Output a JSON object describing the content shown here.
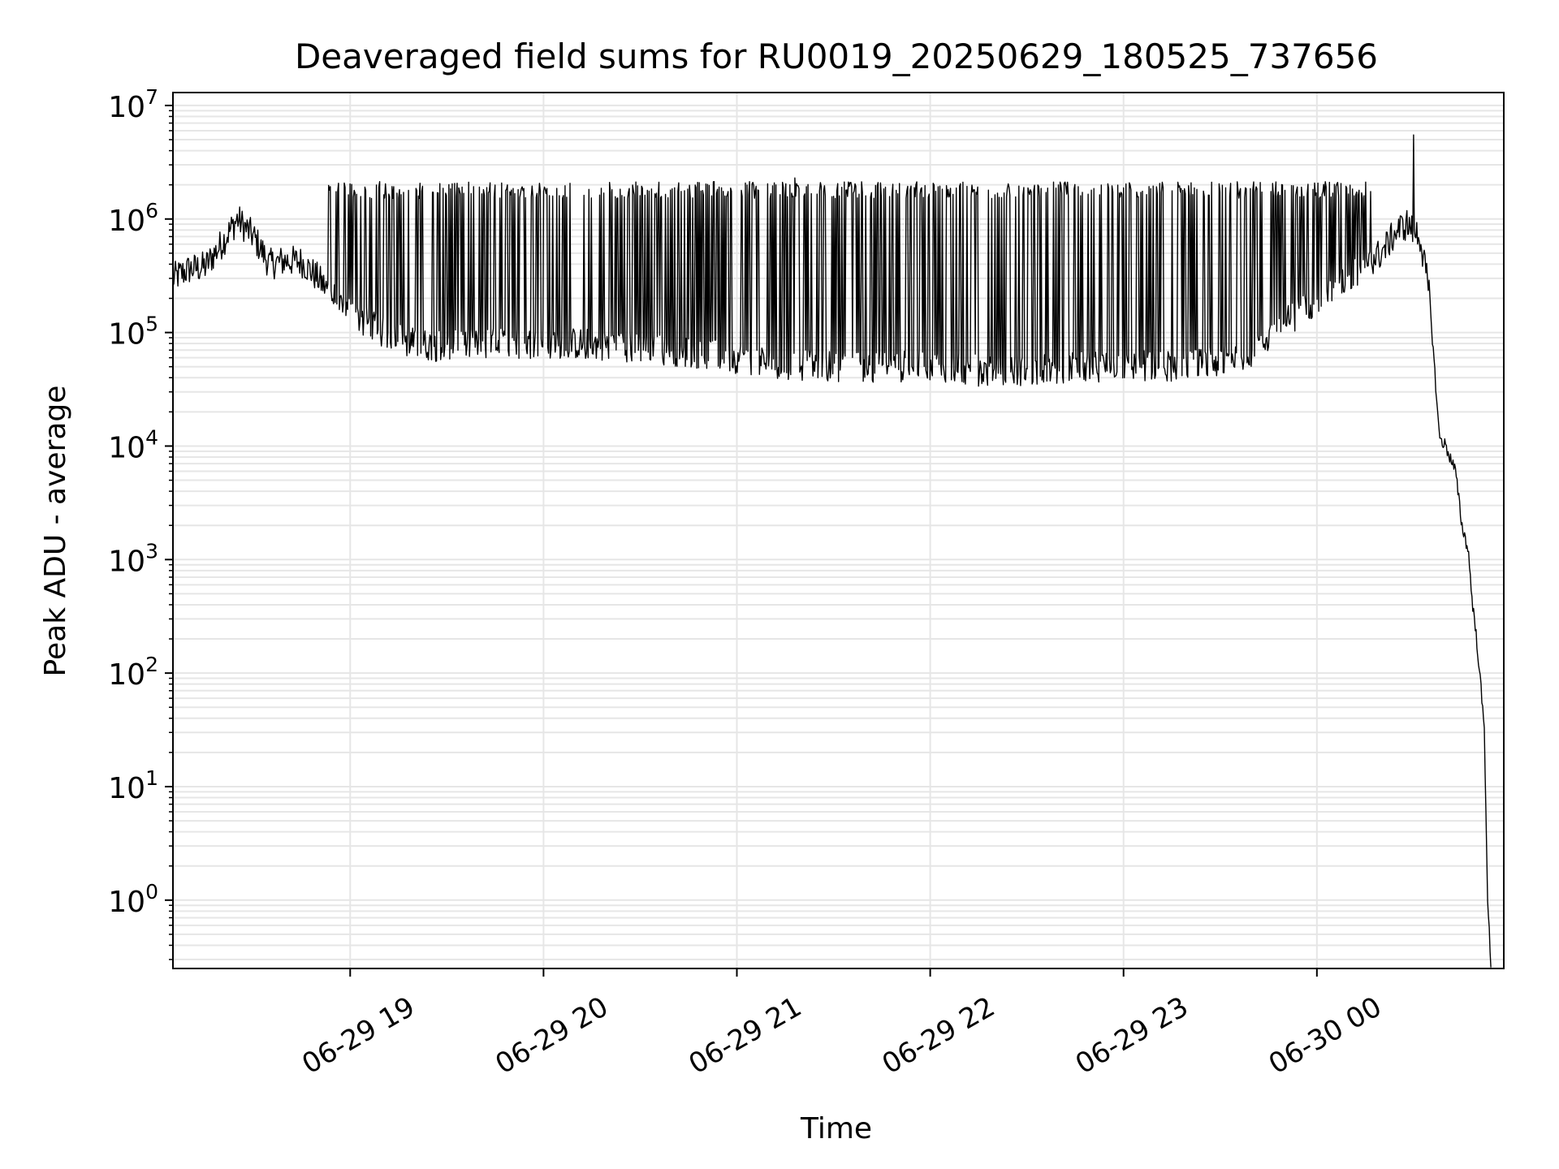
{
  "chart_data": {
    "type": "line",
    "title": "Deaveraged field sums for RU0019_20250629_180525_737656",
    "xlabel": "Time",
    "ylabel": "Peak ADU - average",
    "yscale": "log",
    "ylim": [
      0.25,
      13000000
    ],
    "xlim": [
      "2025-06-29 18:05",
      "2025-06-30 00:58"
    ],
    "grid": true,
    "line_color": "#000000",
    "grid_color": "#e6e6e6",
    "x_ticks": [
      {
        "value": "2025-06-29 19:00",
        "label": "06-29 19"
      },
      {
        "value": "2025-06-29 20:00",
        "label": "06-29 20"
      },
      {
        "value": "2025-06-29 21:00",
        "label": "06-29 21"
      },
      {
        "value": "2025-06-29 22:00",
        "label": "06-29 22"
      },
      {
        "value": "2025-06-29 23:00",
        "label": "06-29 23"
      },
      {
        "value": "2025-06-30 00:00",
        "label": "06-30 00"
      }
    ],
    "y_ticks": [
      {
        "value": 1,
        "base": "10",
        "exp": "0"
      },
      {
        "value": 10,
        "base": "10",
        "exp": "1"
      },
      {
        "value": 100,
        "base": "10",
        "exp": "2"
      },
      {
        "value": 1000,
        "base": "10",
        "exp": "3"
      },
      {
        "value": 10000,
        "base": "10",
        "exp": "4"
      },
      {
        "value": 100000,
        "base": "10",
        "exp": "5"
      },
      {
        "value": 1000000,
        "base": "10",
        "exp": "6"
      },
      {
        "value": 10000000,
        "base": "10",
        "exp": "7"
      }
    ],
    "series": [
      {
        "x": [
          "2025-06-29 18:05",
          "2025-06-29 18:10",
          "2025-06-29 18:15",
          "2025-06-29 18:20",
          "2025-06-29 18:25",
          "2025-06-29 18:30",
          "2025-06-29 18:35",
          "2025-06-29 18:40",
          "2025-06-29 18:45",
          "2025-06-29 18:50",
          "2025-06-29 18:55",
          "2025-06-29 19:00",
          "2025-06-29 19:10",
          "2025-06-29 19:20",
          "2025-06-29 19:30",
          "2025-06-29 19:40",
          "2025-06-29 19:50",
          "2025-06-29 20:00",
          "2025-06-29 20:10",
          "2025-06-29 20:20",
          "2025-06-29 20:30",
          "2025-06-29 20:40",
          "2025-06-29 20:50",
          "2025-06-29 21:00",
          "2025-06-29 21:10",
          "2025-06-29 21:20",
          "2025-06-29 21:30",
          "2025-06-29 21:40",
          "2025-06-29 21:50",
          "2025-06-29 22:00",
          "2025-06-29 22:10",
          "2025-06-29 22:20",
          "2025-06-29 22:30",
          "2025-06-29 22:40",
          "2025-06-29 22:50",
          "2025-06-29 23:00",
          "2025-06-29 23:10",
          "2025-06-29 23:20",
          "2025-06-29 23:30",
          "2025-06-29 23:40",
          "2025-06-29 23:50",
          "2025-06-30 00:00",
          "2025-06-30 00:10",
          "2025-06-30 00:15",
          "2025-06-30 00:20",
          "2025-06-30 00:25",
          "2025-06-30 00:28",
          "2025-06-30 00:32",
          "2025-06-30 00:35",
          "2025-06-30 00:38",
          "2025-06-30 00:40",
          "2025-06-30 00:43",
          "2025-06-30 00:45",
          "2025-06-30 00:47",
          "2025-06-30 00:48",
          "2025-06-30 00:50",
          "2025-06-30 00:52",
          "2025-06-30 00:53",
          "2025-06-30 00:54"
        ],
        "y": [
          300000,
          360000,
          380000,
          600000,
          1000000,
          700000,
          400000,
          430000,
          420000,
          300000,
          200000,
          150000,
          100000,
          80000,
          75000,
          80000,
          80000,
          80000,
          80000,
          78000,
          72000,
          70000,
          65000,
          60000,
          55000,
          52000,
          50000,
          50000,
          50000,
          52000,
          48000,
          45000,
          47000,
          48000,
          50000,
          52000,
          50000,
          52000,
          55000,
          70000,
          120000,
          200000,
          300000,
          400000,
          500000,
          800000,
          900000,
          700000,
          200000,
          12000,
          10000,
          6000,
          2000,
          1200,
          500,
          150,
          30,
          1,
          0.25
        ]
      }
    ],
    "spikes": {
      "start": "2025-06-29 18:53",
      "end": "2025-06-30 00:17",
      "typical_peak": 1800000,
      "notable_peaks": [
        {
          "x": "2025-06-29 21:18",
          "y": 2300000
        },
        {
          "x": "2025-06-30 00:30",
          "y": 5500000
        }
      ]
    }
  }
}
